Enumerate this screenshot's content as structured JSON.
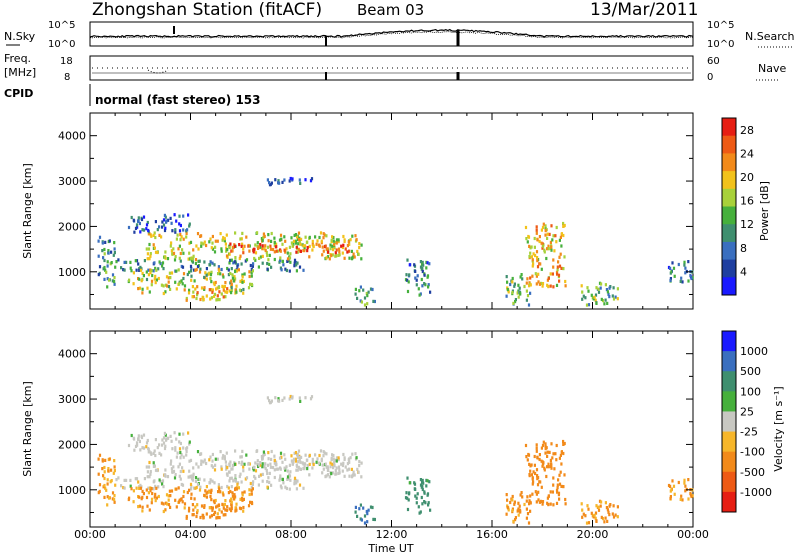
{
  "header": {
    "station": "Zhongshan Station (fitACF)",
    "beam": "Beam 03",
    "date": "13/Mar/2011"
  },
  "status_panels": {
    "nsky_label": "N.Sky",
    "nsky_ticks": [
      "10^5",
      "10^0"
    ],
    "nsearch_label": "N.Search",
    "nsearch_ticks": [
      "10^5",
      "10^0"
    ],
    "freq_label_1": "Freq.",
    "freq_label_2": "[MHz]",
    "freq_ticks": [
      "18",
      "8"
    ],
    "nave_label": "Nave",
    "nave_ticks": [
      "60",
      "0"
    ],
    "cpid_label": "CPID",
    "cpid_value": "normal (fast stereo) 153"
  },
  "colors": {
    "power_bar": [
      "#1a1aff",
      "#1f3fa0",
      "#3a6fbf",
      "#3f8f6f",
      "#46b03c",
      "#a8d13a",
      "#f2c21b",
      "#f28a1a",
      "#ee5a15",
      "#e61e13"
    ],
    "velocity_bar": [
      "#e61e13",
      "#ee5a15",
      "#f28a1a",
      "#f6b62a",
      "#c8c8c2",
      "#46b03c",
      "#3f8f6f",
      "#3a6fbf",
      "#1a1aff"
    ]
  },
  "chart_data": [
    {
      "type": "heatmap",
      "title": "",
      "xlabel": "Time UT",
      "ylabel": "Slant Range [km]",
      "x_ticks": [
        "00:00",
        "04:00",
        "08:00",
        "12:00",
        "16:00",
        "20:00",
        "00:00"
      ],
      "y_ticks": [
        1000,
        2000,
        3000,
        4000
      ],
      "xlim_hours": [
        0,
        24
      ],
      "ylim_km": [
        180,
        4500
      ],
      "colorbar_label": "Power [dB]",
      "colorbar_ticks": [
        4,
        8,
        12,
        16,
        20,
        24,
        28
      ],
      "colorbar_range": [
        0,
        30
      ],
      "echo_regions": [
        {
          "t0": 0.3,
          "t1": 1.0,
          "r0": 700,
          "r1": 1800,
          "v": 10
        },
        {
          "t0": 1.0,
          "t1": 8.5,
          "r0": 1050,
          "r1": 1300,
          "v": 9
        },
        {
          "t0": 2.2,
          "t1": 10.8,
          "r0": 1300,
          "r1": 1900,
          "v": 18
        },
        {
          "t0": 5.5,
          "t1": 10.3,
          "r0": 1450,
          "r1": 1650,
          "v": 26
        },
        {
          "t0": 1.5,
          "t1": 6.5,
          "r0": 550,
          "r1": 1100,
          "v": 17
        },
        {
          "t0": 3.5,
          "t1": 5.5,
          "r0": 400,
          "r1": 700,
          "v": 21
        },
        {
          "t0": 1.5,
          "t1": 4.0,
          "r0": 1900,
          "r1": 2300,
          "v": 6
        },
        {
          "t0": 7.0,
          "t1": 8.8,
          "r0": 2950,
          "r1": 3150,
          "v": 5
        },
        {
          "t0": 10.5,
          "t1": 11.3,
          "r0": 300,
          "r1": 700,
          "v": 12
        },
        {
          "t0": 12.5,
          "t1": 13.5,
          "r0": 500,
          "r1": 1300,
          "v": 8
        },
        {
          "t0": 16.5,
          "t1": 17.5,
          "r0": 300,
          "r1": 1000,
          "v": 14
        },
        {
          "t0": 17.3,
          "t1": 18.9,
          "r0": 700,
          "r1": 2100,
          "v": 20
        },
        {
          "t0": 19.5,
          "t1": 21.0,
          "r0": 300,
          "r1": 800,
          "v": 13
        },
        {
          "t0": 23.0,
          "t1": 24.0,
          "r0": 800,
          "r1": 1300,
          "v": 8
        }
      ]
    },
    {
      "type": "heatmap",
      "title": "",
      "xlabel": "Time UT",
      "ylabel": "Slant Range [km]",
      "x_ticks": [
        "00:00",
        "04:00",
        "08:00",
        "12:00",
        "16:00",
        "20:00",
        "00:00"
      ],
      "y_ticks": [
        1000,
        2000,
        3000,
        4000
      ],
      "xlim_hours": [
        0,
        24
      ],
      "ylim_km": [
        180,
        4500
      ],
      "colorbar_label": "Velocity [m s⁻¹]",
      "colorbar_ticks": [
        1000,
        500,
        100,
        25,
        -25,
        -100,
        -500,
        -1000
      ],
      "echo_regions": [
        {
          "t0": 0.3,
          "t1": 1.0,
          "r0": 700,
          "r1": 1800,
          "v": -120
        },
        {
          "t0": 1.0,
          "t1": 8.5,
          "r0": 1050,
          "r1": 1300,
          "v": 0
        },
        {
          "t0": 2.2,
          "t1": 10.8,
          "r0": 1300,
          "r1": 1900,
          "v": 0
        },
        {
          "t0": 5.5,
          "t1": 10.3,
          "r0": 1450,
          "r1": 1650,
          "v": 0
        },
        {
          "t0": 1.5,
          "t1": 6.5,
          "r0": 550,
          "r1": 1100,
          "v": -150
        },
        {
          "t0": 3.5,
          "t1": 5.5,
          "r0": 400,
          "r1": 700,
          "v": -200
        },
        {
          "t0": 1.5,
          "t1": 4.0,
          "r0": 1900,
          "r1": 2300,
          "v": 0
        },
        {
          "t0": 7.0,
          "t1": 8.8,
          "r0": 2950,
          "r1": 3150,
          "v": 0
        },
        {
          "t0": 10.5,
          "t1": 11.3,
          "r0": 300,
          "r1": 700,
          "v": 600
        },
        {
          "t0": 12.5,
          "t1": 13.5,
          "r0": 500,
          "r1": 1300,
          "v": 200
        },
        {
          "t0": 16.5,
          "t1": 17.5,
          "r0": 300,
          "r1": 1000,
          "v": -150
        },
        {
          "t0": 17.3,
          "t1": 18.9,
          "r0": 700,
          "r1": 2100,
          "v": -300
        },
        {
          "t0": 19.5,
          "t1": 21.0,
          "r0": 300,
          "r1": 800,
          "v": -150
        },
        {
          "t0": 23.0,
          "t1": 24.0,
          "r0": 800,
          "r1": 1300,
          "v": -120
        }
      ]
    }
  ]
}
